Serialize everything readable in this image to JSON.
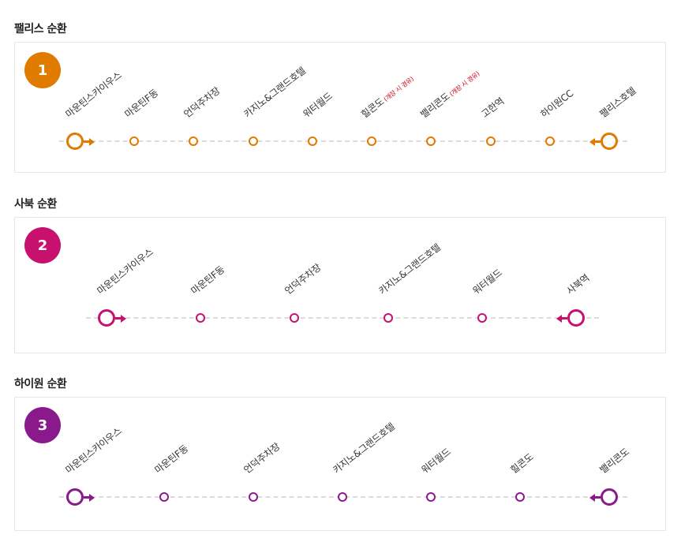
{
  "routes": [
    {
      "title": "팰리스 순환",
      "number": "1",
      "color": "#e07b00",
      "stops": [
        {
          "name": "마운틴스카이우스",
          "note": ""
        },
        {
          "name": "마운틴F동",
          "note": ""
        },
        {
          "name": "언덕주차장",
          "note": ""
        },
        {
          "name": "카지노&그랜드호텔",
          "note": ""
        },
        {
          "name": "워터월드",
          "note": ""
        },
        {
          "name": "힐콘도",
          "note": "(개장 시 경유)"
        },
        {
          "name": "밸리콘도",
          "note": "(개장 시 경유)"
        },
        {
          "name": "고한역",
          "note": ""
        },
        {
          "name": "하이원CC",
          "note": ""
        },
        {
          "name": "팰리스호텔",
          "note": ""
        }
      ]
    },
    {
      "title": "사북 순환",
      "number": "2",
      "color": "#c8106e",
      "stops": [
        {
          "name": "마운틴스카이우스",
          "note": ""
        },
        {
          "name": "마운틴F동",
          "note": ""
        },
        {
          "name": "언덕주차장",
          "note": ""
        },
        {
          "name": "카지노&그랜드호텔",
          "note": ""
        },
        {
          "name": "워터월드",
          "note": ""
        },
        {
          "name": "사북역",
          "note": ""
        }
      ]
    },
    {
      "title": "하이원 순환",
      "number": "3",
      "color": "#8a1a8c",
      "stops": [
        {
          "name": "마운틴스카이우스",
          "note": ""
        },
        {
          "name": "마운틴F동",
          "note": ""
        },
        {
          "name": "언덕주차장",
          "note": ""
        },
        {
          "name": "카지노&그랜드호텔",
          "note": ""
        },
        {
          "name": "워터월드",
          "note": ""
        },
        {
          "name": "힐콘도",
          "note": ""
        },
        {
          "name": "밸리콘도",
          "note": ""
        }
      ]
    }
  ]
}
